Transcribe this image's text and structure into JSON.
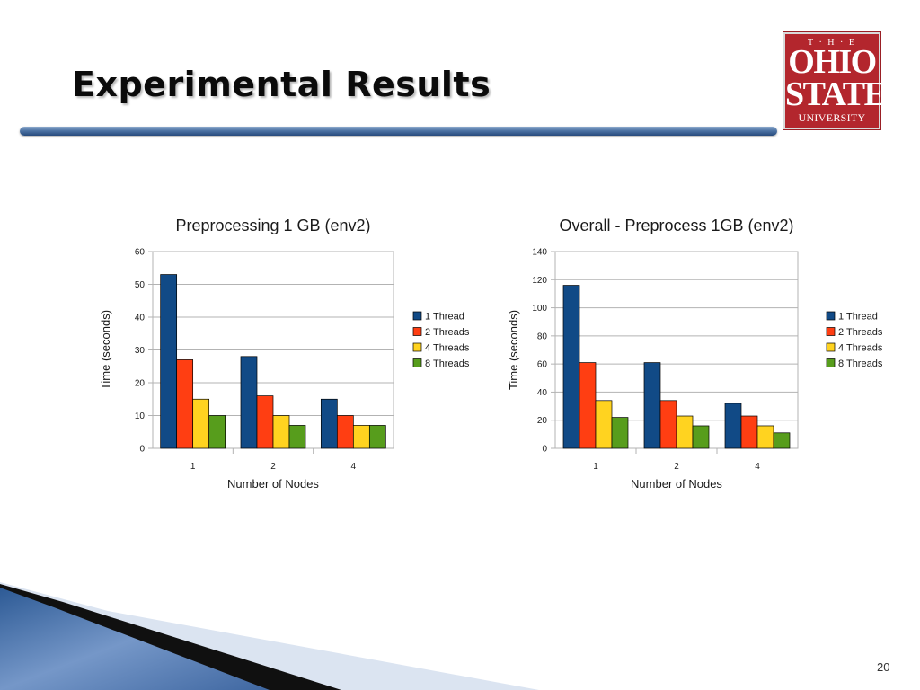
{
  "slide": {
    "title": "Experimental Results",
    "page_number": "20"
  },
  "logo": {
    "line1": "T · H · E",
    "line2": "OHIO",
    "line3": "STATE",
    "line4": "UNIVERSITY",
    "color": "#b3262d"
  },
  "colors": {
    "series": [
      "#114a86",
      "#ff3e12",
      "#ffd320",
      "#579d1c"
    ]
  },
  "chart_data": [
    {
      "type": "bar",
      "title": "Preprocessing  1 GB (env2)",
      "xlabel": "Number of Nodes",
      "ylabel": "Time (seconds)",
      "categories": [
        "1",
        "2",
        "4"
      ],
      "ylim": [
        0,
        60
      ],
      "yticks": [
        0,
        10,
        20,
        30,
        40,
        50,
        60
      ],
      "grid": true,
      "legend": "right",
      "series": [
        {
          "name": "1 Thread",
          "values": [
            53,
            28,
            15
          ]
        },
        {
          "name": "2 Threads",
          "values": [
            27,
            16,
            10
          ]
        },
        {
          "name": "4 Threads",
          "values": [
            15,
            10,
            7
          ]
        },
        {
          "name": "8 Threads",
          "values": [
            10,
            7,
            7
          ]
        }
      ]
    },
    {
      "type": "bar",
      "title": "Overall - Preprocess 1GB (env2)",
      "xlabel": "Number of Nodes",
      "ylabel": "Time (seconds)",
      "categories": [
        "1",
        "2",
        "4"
      ],
      "ylim": [
        0,
        140
      ],
      "yticks": [
        0,
        20,
        40,
        60,
        80,
        100,
        120,
        140
      ],
      "grid": true,
      "legend": "right",
      "series": [
        {
          "name": "1 Thread",
          "values": [
            116,
            61,
            32
          ]
        },
        {
          "name": "2 Threads",
          "values": [
            61,
            34,
            23
          ]
        },
        {
          "name": "4 Threads",
          "values": [
            34,
            23,
            16
          ]
        },
        {
          "name": "8 Threads",
          "values": [
            22,
            16,
            11
          ]
        }
      ]
    }
  ]
}
